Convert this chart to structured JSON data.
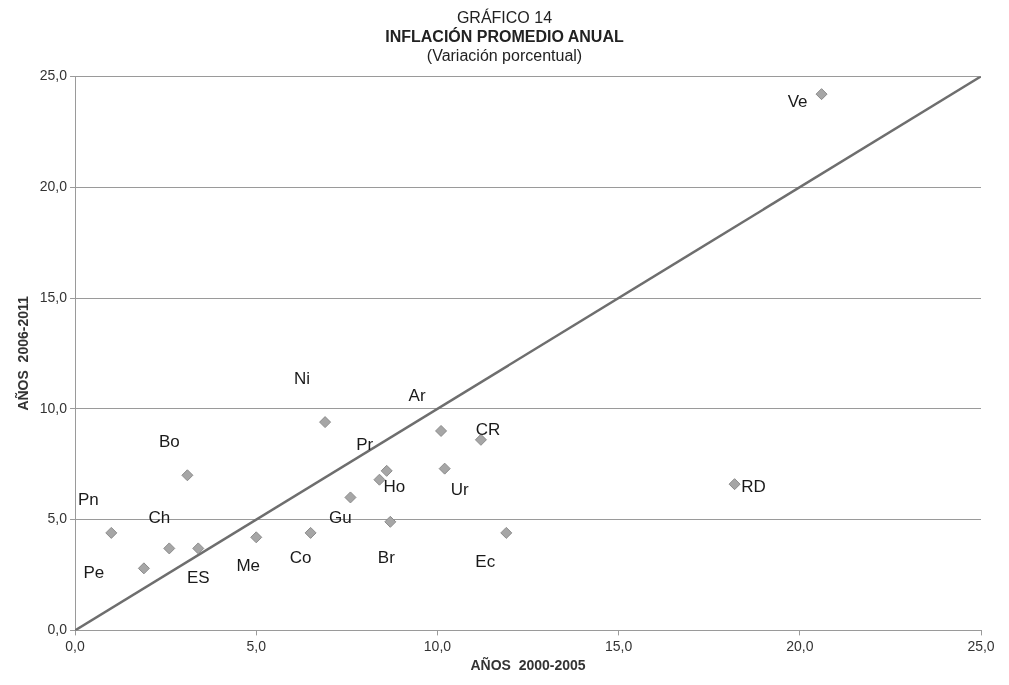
{
  "chart_data": {
    "type": "scatter",
    "title": "INFLACIÓN PROMEDIO ANUAL",
    "subtitle": "(Variación porcentual)",
    "xlabel": "AÑOS  2000-2005",
    "ylabel": "AÑOS  2006-2011",
    "xlim": [
      0,
      25
    ],
    "ylim": [
      0,
      25
    ],
    "xticks": [
      {
        "value": 0,
        "label": "0,0"
      },
      {
        "value": 5,
        "label": "5,0"
      },
      {
        "value": 10,
        "label": "10,0"
      },
      {
        "value": 15,
        "label": "15,0"
      },
      {
        "value": 20,
        "label": "20,0"
      },
      {
        "value": 25,
        "label": "25,0"
      }
    ],
    "yticks": [
      {
        "value": 0,
        "label": "0,0"
      },
      {
        "value": 5,
        "label": "5,0"
      },
      {
        "value": 10,
        "label": "10,0"
      },
      {
        "value": 15,
        "label": "15,0"
      },
      {
        "value": 20,
        "label": "20,0"
      },
      {
        "value": 25,
        "label": "25,0"
      }
    ],
    "grid": "y",
    "legend": false,
    "series": [
      {
        "marker": "diamond",
        "color": "#a6a6a6",
        "x": [
          20.6,
          6.9,
          3.1,
          1.0,
          2.6,
          1.9,
          3.4,
          5.0,
          6.5,
          7.6,
          8.4,
          8.6,
          8.7,
          10.1,
          10.2,
          11.2,
          11.9,
          18.2
        ],
        "values": [
          24.2,
          9.4,
          7.0,
          4.4,
          3.7,
          2.8,
          3.7,
          4.2,
          4.4,
          6.0,
          6.8,
          7.2,
          4.9,
          9.0,
          7.3,
          8.6,
          4.4,
          6.6
        ]
      },
      {
        "type": "line",
        "color": "#6e6e6e",
        "x": [
          0,
          25
        ],
        "values": [
          0,
          25
        ]
      }
    ],
    "annotations": [
      "GRÁFICO 14",
      {
        "text": "Ve",
        "x": 20.6,
        "y": 24.2
      },
      {
        "text": "Ni",
        "x": 6.9,
        "y": 9.4
      },
      {
        "text": "Bo",
        "x": 3.1,
        "y": 7.0
      },
      {
        "text": "Pn",
        "x": 1.0,
        "y": 4.4
      },
      {
        "text": "Ch",
        "x": 2.6,
        "y": 3.7
      },
      {
        "text": "Pe",
        "x": 1.9,
        "y": 2.8
      },
      {
        "text": "ES",
        "x": 3.4,
        "y": 3.7
      },
      {
        "text": "Me",
        "x": 5.0,
        "y": 4.2
      },
      {
        "text": "Co",
        "x": 6.5,
        "y": 4.4
      },
      {
        "text": "Gu",
        "x": 7.6,
        "y": 6.0
      },
      {
        "text": "Ho",
        "x": 8.4,
        "y": 6.8
      },
      {
        "text": "Pr",
        "x": 8.6,
        "y": 7.2
      },
      {
        "text": "Br",
        "x": 8.7,
        "y": 4.9
      },
      {
        "text": "Ar",
        "x": 10.1,
        "y": 9.0
      },
      {
        "text": "Ur",
        "x": 10.2,
        "y": 7.3
      },
      {
        "text": "CR",
        "x": 11.2,
        "y": 8.6
      },
      {
        "text": "Ec",
        "x": 11.9,
        "y": 4.4
      },
      {
        "text": "RD",
        "x": 18.2,
        "y": 6.6
      }
    ]
  }
}
